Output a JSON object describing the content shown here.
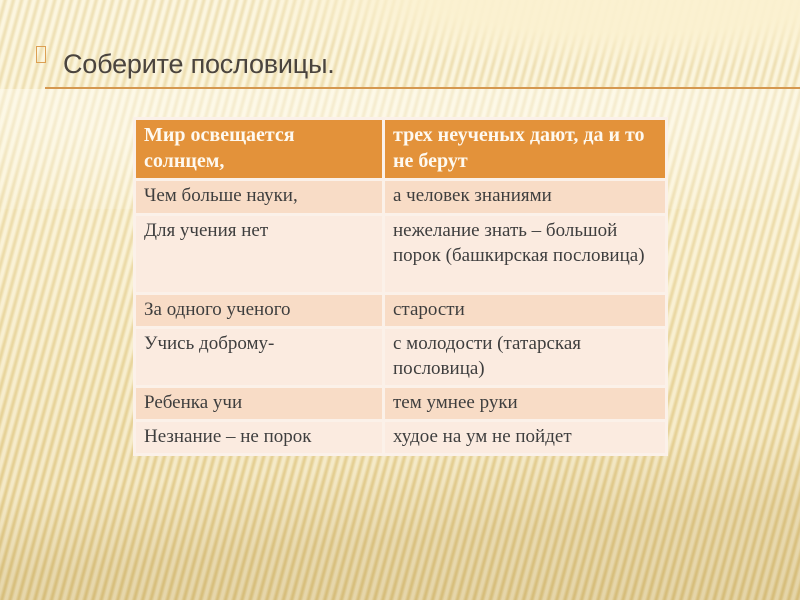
{
  "slide": {
    "title": "Соберите пословицы."
  },
  "table": {
    "header": [
      "Мир освещается солнцем,",
      "трех неученых дают, да и то не берут"
    ],
    "rows": [
      [
        "Чем больше науки,",
        "а человек знаниями"
      ],
      [
        "Для учения нет",
        "нежелание знать – большой порок (башкирская пословица)"
      ],
      [
        "За одного ученого",
        "старости"
      ],
      [
        "Учись доброму-",
        "с молодости (татарская пословица)"
      ],
      [
        "Ребенка учи",
        "тем умнее руки"
      ],
      [
        "Незнание – не порок",
        "худое на ум не пойдет"
      ]
    ]
  },
  "colors": {
    "header_bg": "#E3923A",
    "header_text": "#FEF9F0",
    "row_dark_bg": "#F8DCC6",
    "row_light_bg": "#FBEBE0",
    "table_frame": "#FBF1E9",
    "accent_line": "#D5984F",
    "bullet_outline": "#DC9F52",
    "title_text": "#4A443E",
    "body_text": "#3E3E3E"
  }
}
